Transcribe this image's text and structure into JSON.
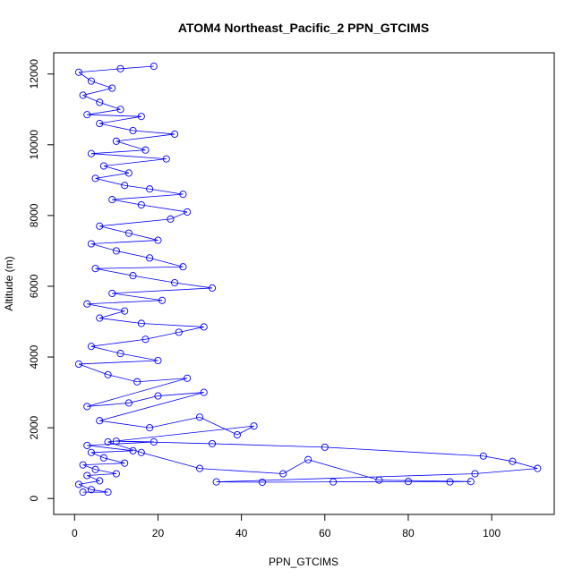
{
  "chart_data": {
    "type": "scatter",
    "title": "ATOM4 Northeast_Pacific_2 PPN_GTCIMS",
    "xlabel": "PPN_GTCIMS",
    "ylabel": "Altitude (m)",
    "xlim": [
      -5,
      115
    ],
    "ylim": [
      -450,
      12600
    ],
    "xticks": [
      0,
      20,
      40,
      60,
      80,
      100
    ],
    "yticks": [
      0,
      2000,
      4000,
      6000,
      8000,
      10000,
      12000
    ],
    "grid": false,
    "legend": "none",
    "point_shape": "open-circle",
    "connected": true,
    "series_color": "#0000FF",
    "points_note_seed": 7,
    "series": [
      {
        "values": [
          [
            2,
            180
          ],
          [
            8,
            180
          ],
          [
            4,
            250
          ],
          [
            1,
            400
          ],
          [
            6,
            500
          ],
          [
            3,
            650
          ],
          [
            10,
            700
          ],
          [
            5,
            820
          ],
          [
            2,
            950
          ],
          [
            12,
            1000
          ],
          [
            7,
            1150
          ],
          [
            4,
            1300
          ],
          [
            14,
            1350
          ],
          [
            3,
            1500
          ],
          [
            19,
            1600
          ],
          [
            10,
            1620
          ],
          [
            33,
            1550
          ],
          [
            60,
            1450
          ],
          [
            98,
            1200
          ],
          [
            105,
            1050
          ],
          [
            111,
            850
          ],
          [
            96,
            700
          ],
          [
            34,
            470
          ],
          [
            45,
            460
          ],
          [
            62,
            470
          ],
          [
            80,
            480
          ],
          [
            90,
            470
          ],
          [
            95,
            480
          ],
          [
            73,
            520
          ],
          [
            56,
            1100
          ],
          [
            50,
            700
          ],
          [
            30,
            850
          ],
          [
            16,
            1300
          ],
          [
            8,
            1600
          ],
          [
            43,
            2050
          ],
          [
            39,
            1800
          ],
          [
            30,
            2300
          ],
          [
            18,
            2000
          ],
          [
            6,
            2200
          ],
          [
            31,
            3000
          ],
          [
            20,
            2900
          ],
          [
            13,
            2700
          ],
          [
            3,
            2600
          ],
          [
            27,
            3400
          ],
          [
            15,
            3300
          ],
          [
            8,
            3500
          ],
          [
            1,
            3800
          ],
          [
            20,
            3900
          ],
          [
            11,
            4100
          ],
          [
            4,
            4300
          ],
          [
            17,
            4500
          ],
          [
            25,
            4700
          ],
          [
            31,
            4850
          ],
          [
            16,
            4950
          ],
          [
            6,
            5100
          ],
          [
            12,
            5300
          ],
          [
            3,
            5500
          ],
          [
            21,
            5600
          ],
          [
            9,
            5800
          ],
          [
            33,
            5950
          ],
          [
            24,
            6100
          ],
          [
            14,
            6300
          ],
          [
            5,
            6500
          ],
          [
            26,
            6550
          ],
          [
            18,
            6800
          ],
          [
            10,
            7000
          ],
          [
            4,
            7200
          ],
          [
            20,
            7300
          ],
          [
            13,
            7500
          ],
          [
            6,
            7700
          ],
          [
            23,
            7900
          ],
          [
            27,
            8100
          ],
          [
            16,
            8300
          ],
          [
            9,
            8450
          ],
          [
            26,
            8600
          ],
          [
            18,
            8750
          ],
          [
            12,
            8850
          ],
          [
            5,
            9050
          ],
          [
            13,
            9200
          ],
          [
            7,
            9400
          ],
          [
            22,
            9600
          ],
          [
            4,
            9750
          ],
          [
            17,
            9850
          ],
          [
            10,
            10100
          ],
          [
            24,
            10300
          ],
          [
            14,
            10400
          ],
          [
            6,
            10600
          ],
          [
            16,
            10800
          ],
          [
            3,
            10850
          ],
          [
            11,
            11000
          ],
          [
            6,
            11200
          ],
          [
            2,
            11400
          ],
          [
            9,
            11600
          ],
          [
            4,
            11800
          ],
          [
            1,
            12050
          ],
          [
            11,
            12150
          ],
          [
            19,
            12220
          ]
        ]
      }
    ]
  }
}
